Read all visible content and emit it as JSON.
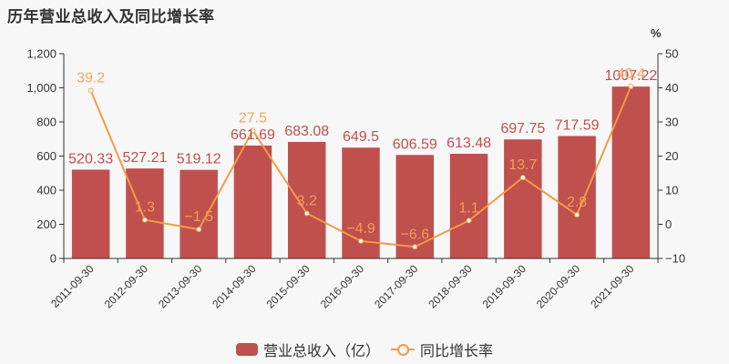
{
  "title": "历年营业总收入及同比增长率",
  "legend": {
    "bar_label": "营业总收入（亿）",
    "line_label": "同比增长率"
  },
  "colors": {
    "bar": "#c0504d",
    "line": "#f39a45",
    "bar_label": "#c0504d",
    "line_label": "#f5a05a",
    "axis": "#333333",
    "background": "#f7f7f7"
  },
  "chart_data": {
    "type": "bar+line",
    "title": "历年营业总收入及同比增长率",
    "categories": [
      "2011-09-30",
      "2012-09-30",
      "2013-09-30",
      "2014-09-30",
      "2015-09-30",
      "2016-09-30",
      "2017-09-30",
      "2018-09-30",
      "2019-09-30",
      "2020-09-30",
      "2021-09-30"
    ],
    "series": [
      {
        "name": "营业总收入（亿）",
        "type": "bar",
        "axis": "left",
        "values": [
          520.33,
          527.21,
          519.12,
          661.69,
          683.08,
          649.5,
          606.59,
          613.48,
          697.75,
          717.59,
          1007.22
        ]
      },
      {
        "name": "同比增长率",
        "type": "line",
        "axis": "right",
        "values": [
          39.2,
          1.3,
          -1.5,
          27.5,
          3.2,
          -4.9,
          -6.6,
          1.1,
          13.7,
          2.8,
          40.4
        ]
      }
    ],
    "y_left": {
      "label": "",
      "range": [
        0,
        1200
      ],
      "ticks": [
        "0",
        "200",
        "400",
        "600",
        "800",
        "1,000",
        "1,200"
      ]
    },
    "y_right": {
      "label": "%",
      "range": [
        -10,
        50
      ],
      "ticks": [
        "−10",
        "0",
        "10",
        "20",
        "30",
        "40",
        "50"
      ]
    },
    "grid": false,
    "legend_position": "bottom"
  }
}
